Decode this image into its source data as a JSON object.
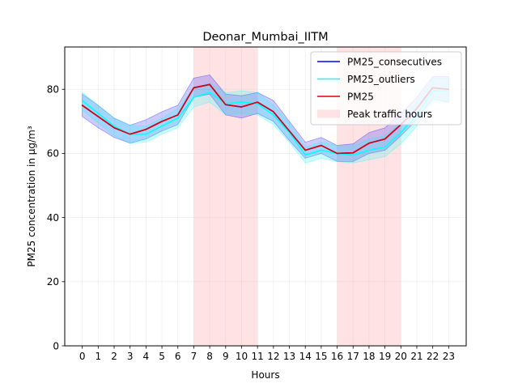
{
  "chart_data": {
    "type": "line",
    "title": "Deonar_Mumbai_IITM",
    "xlabel": "Hours",
    "ylabel": "PM25 concentration in µg/m³",
    "x": [
      0,
      1,
      2,
      3,
      4,
      5,
      6,
      7,
      8,
      9,
      10,
      11,
      12,
      13,
      14,
      15,
      16,
      17,
      18,
      19,
      20,
      21,
      22,
      23
    ],
    "xlim": [
      -1.1,
      24.1
    ],
    "ylim": [
      0,
      93.2
    ],
    "yticks": [
      0,
      20,
      40,
      60,
      80
    ],
    "grid": true,
    "legend_position": "upper right",
    "shaded_regions": [
      {
        "name": "Peak traffic hours",
        "x_start": 7,
        "x_end": 11,
        "color": "#ffc0c4"
      },
      {
        "x_start": 16,
        "x_end": 20,
        "color": "#ffc0c4"
      }
    ],
    "series": [
      {
        "name": "PM25_consecutives",
        "color": "#0000ff",
        "values": [
          75.0,
          71.5,
          68.0,
          66.0,
          67.5,
          70.0,
          72.0,
          80.5,
          81.5,
          75.2,
          74.5,
          76.0,
          73.0,
          67.0,
          61.0,
          62.5,
          60.0,
          60.2,
          63.2,
          64.5,
          69.0,
          74.0,
          80.5,
          80.0
        ],
        "band_low": [
          71.5,
          68.0,
          65.0,
          63.2,
          64.5,
          67.0,
          69.0,
          77.5,
          78.5,
          72.0,
          71.0,
          72.5,
          70.0,
          64.0,
          58.5,
          60.0,
          57.5,
          57.5,
          60.0,
          61.0,
          65.5,
          70.5,
          77.0,
          76.0
        ],
        "band_high": [
          78.5,
          75.0,
          71.0,
          68.8,
          70.5,
          73.0,
          75.0,
          83.5,
          84.5,
          78.5,
          78.0,
          79.0,
          76.5,
          70.0,
          63.5,
          65.0,
          62.5,
          63.0,
          66.5,
          68.0,
          72.5,
          77.5,
          84.0,
          84.0
        ]
      },
      {
        "name": "PM25_outliers",
        "color": "#00ffff",
        "values": [
          76.5,
          72.5,
          68.5,
          66.0,
          66.0,
          68.5,
          71.0,
          77.5,
          79.0,
          75.5,
          76.0,
          75.5,
          72.0,
          66.5,
          59.5,
          61.0,
          60.0,
          59.5,
          61.0,
          62.0,
          66.5,
          72.0,
          79.5,
          79.5
        ],
        "band_low": [
          73.5,
          69.5,
          65.5,
          63.2,
          63.5,
          66.0,
          68.0,
          74.5,
          76.0,
          72.0,
          72.5,
          72.0,
          69.0,
          63.5,
          57.0,
          58.5,
          57.5,
          57.0,
          58.0,
          59.0,
          63.0,
          68.5,
          76.0,
          76.0
        ],
        "band_high": [
          79.0,
          75.0,
          71.0,
          68.8,
          68.5,
          71.0,
          74.0,
          80.5,
          82.0,
          79.0,
          79.5,
          79.0,
          75.0,
          69.5,
          62.0,
          63.5,
          62.5,
          62.5,
          64.5,
          65.5,
          70.0,
          76.0,
          83.5,
          83.5
        ]
      },
      {
        "name": "PM25",
        "color": "#e00000",
        "values": [
          75.0,
          71.5,
          68.0,
          66.0,
          67.5,
          70.0,
          72.0,
          80.5,
          81.5,
          75.2,
          74.5,
          76.0,
          73.0,
          67.0,
          61.0,
          62.5,
          60.0,
          60.2,
          63.2,
          64.5,
          69.0,
          74.0,
          80.5,
          80.0
        ]
      }
    ]
  }
}
